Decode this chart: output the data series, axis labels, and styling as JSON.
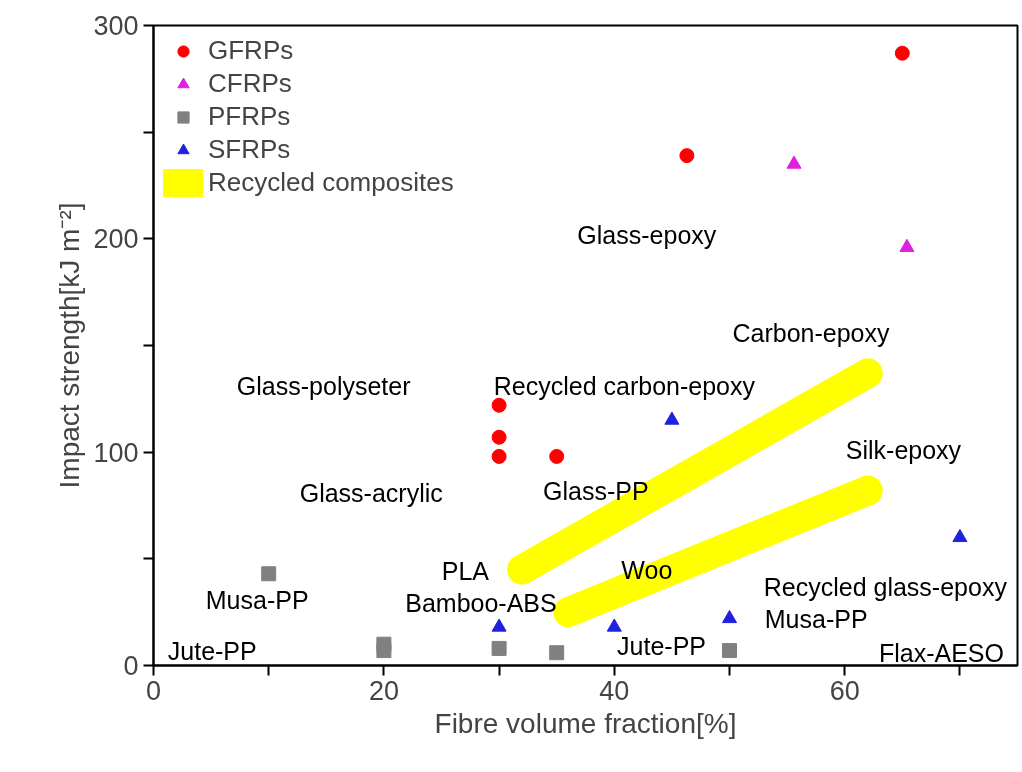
{
  "chart_data": {
    "type": "scatter",
    "xlabel": "Fibre volume fraction[%]",
    "ylabel": "Impact strength[kJ m⁻²]",
    "xlim": [
      0,
      75
    ],
    "ylim": [
      0,
      300
    ],
    "xticks": [
      0,
      {
        "value": 10,
        "label": null
      },
      20,
      {
        "value": 30,
        "label": null
      },
      40,
      {
        "value": 50,
        "label": null
      },
      60,
      {
        "value": 70,
        "label": null
      }
    ],
    "yticks": [
      0,
      {
        "value": 50,
        "label": null
      },
      100,
      {
        "value": 150,
        "label": null
      },
      200,
      {
        "value": 250,
        "label": null
      },
      300
    ],
    "grid": false,
    "legend": "top left",
    "series": [
      {
        "name": "GFRPs",
        "color": "#ff0000",
        "marker": "circle",
        "x": [
          65,
          46.3,
          30,
          30,
          30,
          35
        ],
        "values": [
          287,
          239,
          122,
          107,
          98,
          98
        ]
      },
      {
        "name": "CFRPs",
        "color": "#e020e0",
        "marker": "triangle",
        "x": [
          55.6,
          65.4
        ],
        "values": [
          235,
          196
        ]
      },
      {
        "name": "PFRPs",
        "color": "#808080",
        "marker": "square",
        "x": [
          10,
          20,
          20,
          30,
          35,
          50
        ],
        "values": [
          43,
          10,
          7,
          8,
          6,
          7
        ]
      },
      {
        "name": "SFRPs",
        "color": "#2020e0",
        "marker": "triangle",
        "x": [
          45,
          30,
          40,
          50,
          70
        ],
        "values": [
          115,
          18,
          18,
          22,
          60
        ]
      },
      {
        "name": "Recycled composites",
        "color": "#ffff00",
        "type": "line",
        "x": [
          32,
          62,
          49,
          36,
          62
        ],
        "values": [
          45,
          137,
          null,
          25,
          82
        ]
      }
    ],
    "annotations": [
      "Glass-epoxy",
      "Carbon-epoxy",
      "Glass-polyseter",
      "Glass-acrylic",
      "Glass-PP",
      "Silk-epoxy",
      "PLA",
      "Woo",
      "Bamboo-ABS",
      "Musa-PP",
      "Jute-PP",
      "Jute-PP",
      "Musa-PP",
      "Flax-AESO",
      "Recycled carbon-epoxy",
      "Recycled glass-epoxy"
    ]
  }
}
